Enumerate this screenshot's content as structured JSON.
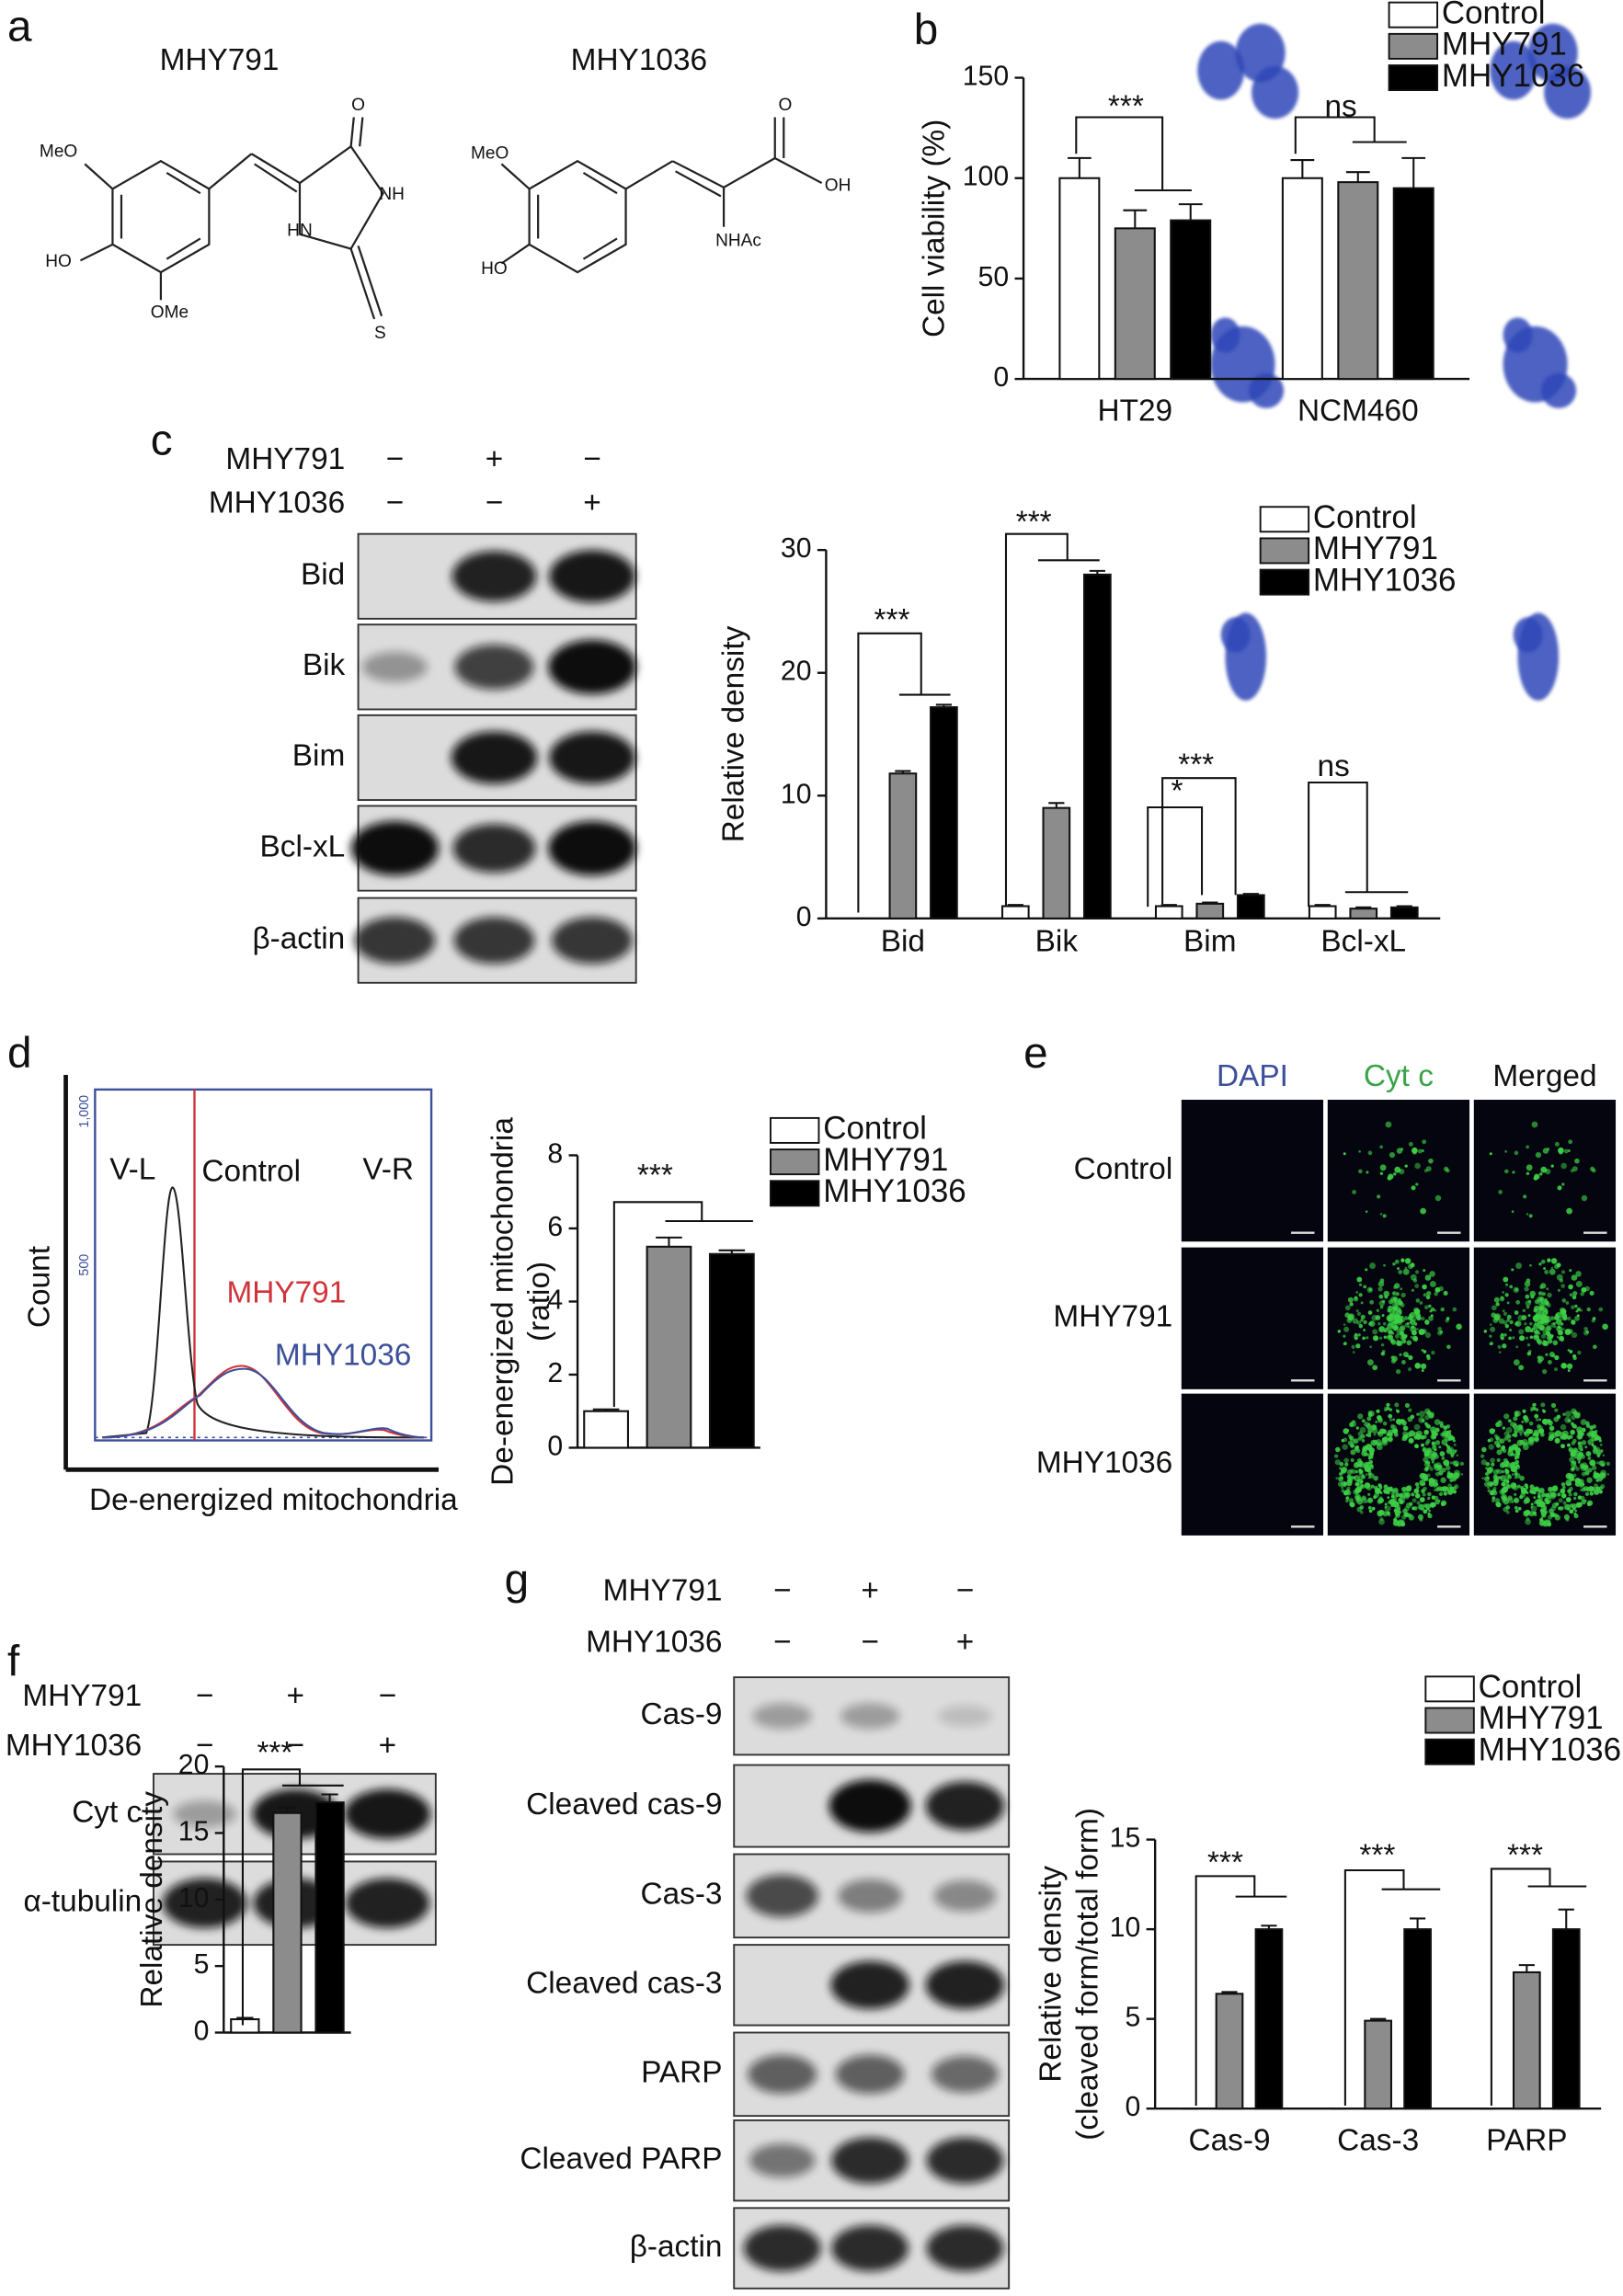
{
  "panels": {
    "a": {
      "letter": "a",
      "compounds": [
        {
          "name": "MHY791",
          "atoms": [
            "MeO",
            "HO",
            "OMe",
            "O",
            "NH",
            "HN",
            "S"
          ]
        },
        {
          "name": "MHY1036",
          "atoms": [
            "MeO",
            "HO",
            "O",
            "OH",
            "NHAc"
          ]
        }
      ]
    },
    "b": {
      "letter": "b"
    },
    "c": {
      "letter": "c",
      "treatments": [
        {
          "name": "MHY791",
          "signs": [
            "−",
            "+",
            "−"
          ]
        },
        {
          "name": "MHY1036",
          "signs": [
            "−",
            "−",
            "+"
          ]
        }
      ],
      "rows": [
        "Bid",
        "Bik",
        "Bim",
        "Bcl-xL",
        "β-actin"
      ]
    },
    "d": {
      "letter": "d",
      "regions": [
        "V-L",
        "V-R"
      ],
      "traces": [
        {
          "name": "Control",
          "color": "#222222"
        },
        {
          "name": "MHY791",
          "color": "#d0343a"
        },
        {
          "name": "MHY1036",
          "color": "#3c4f9a"
        }
      ],
      "ylabel": "Count",
      "xlabel": "De-energized mitochondria",
      "yticks": [
        "1,000",
        "500"
      ]
    },
    "e": {
      "letter": "e",
      "columns": [
        "DAPI",
        "Cyt c",
        "Merged"
      ],
      "column_colors": [
        "#3c4f9a",
        "#3aa34a",
        "#111111"
      ],
      "rows": [
        "Control",
        "MHY791",
        "MHY1036"
      ]
    },
    "f": {
      "letter": "f",
      "treatments": [
        {
          "name": "MHY791",
          "signs": [
            "−",
            "+",
            "−"
          ]
        },
        {
          "name": "MHY1036",
          "signs": [
            "−",
            "−",
            "+"
          ]
        }
      ],
      "rows": [
        "Cyt c",
        "α-tubulin"
      ]
    },
    "g": {
      "letter": "g",
      "treatments": [
        {
          "name": "MHY791",
          "signs": [
            "−",
            "+",
            "−"
          ]
        },
        {
          "name": "MHY1036",
          "signs": [
            "−",
            "−",
            "+"
          ]
        }
      ],
      "rows": [
        "Cas-9",
        "Cleaved cas-9",
        "Cas-3",
        "Cleaved cas-3",
        "PARP",
        "Cleaved PARP",
        "β-actin"
      ]
    }
  },
  "chart_data": [
    {
      "type": "bar",
      "ylabel": "Cell viability (%)",
      "categories": [
        "HT29",
        "NCM460"
      ],
      "series": [
        {
          "name": "Control",
          "color": "#ffffff",
          "values": [
            100,
            100
          ],
          "errors": [
            10,
            9
          ]
        },
        {
          "name": "MHY791",
          "color": "#8c8c8c",
          "values": [
            75,
            98
          ],
          "errors": [
            9,
            5
          ]
        },
        {
          "name": "MHY1036",
          "color": "#000000",
          "values": [
            79,
            95
          ],
          "errors": [
            8,
            15
          ]
        }
      ],
      "ylim": [
        0,
        150
      ],
      "yticks": [
        0,
        50,
        100,
        150
      ],
      "annotations": [
        "***",
        "ns"
      ]
    },
    {
      "type": "bar",
      "ylabel": "Relative density",
      "categories": [
        "Bid",
        "Bik",
        "Bim",
        "Bcl-xL"
      ],
      "series": [
        {
          "name": "Control",
          "color": "#ffffff",
          "values": [
            0,
            1,
            1,
            1
          ],
          "errors": [
            0,
            0.1,
            0.1,
            0.1
          ]
        },
        {
          "name": "MHY791",
          "color": "#8c8c8c",
          "values": [
            11.8,
            9,
            1.2,
            0.8
          ],
          "errors": [
            0.2,
            0.4,
            0.1,
            0.1
          ]
        },
        {
          "name": "MHY1036",
          "color": "#000000",
          "values": [
            17.2,
            28,
            1.9,
            0.9
          ],
          "errors": [
            0.2,
            0.3,
            0.1,
            0.1
          ]
        }
      ],
      "ylim": [
        0,
        30
      ],
      "yticks": [
        0,
        10,
        20,
        30
      ],
      "annotations": [
        "***",
        "***",
        "***",
        "*",
        "ns"
      ]
    },
    {
      "type": "bar",
      "ylabel": [
        "De-energized mitochondria",
        "(ratio)"
      ],
      "categories": [
        null
      ],
      "series": [
        {
          "name": "Control",
          "color": "#ffffff",
          "values": [
            1
          ],
          "errors": [
            0.05
          ]
        },
        {
          "name": "MHY791",
          "color": "#8c8c8c",
          "values": [
            5.5
          ],
          "errors": [
            0.25
          ]
        },
        {
          "name": "MHY1036",
          "color": "#000000",
          "values": [
            5.3
          ],
          "errors": [
            0.1
          ]
        }
      ],
      "ylim": [
        0,
        8
      ],
      "yticks": [
        0,
        2,
        4,
        6,
        8
      ],
      "annotations": [
        "***"
      ]
    },
    {
      "type": "bar",
      "ylabel": "Relative density",
      "categories": [
        null
      ],
      "series": [
        {
          "name": "Control",
          "color": "#ffffff",
          "values": [
            1
          ],
          "errors": [
            0.1
          ]
        },
        {
          "name": "MHY791",
          "color": "#8c8c8c",
          "values": [
            16.5
          ],
          "errors": [
            0.4
          ]
        },
        {
          "name": "MHY1036",
          "color": "#000000",
          "values": [
            17.3
          ],
          "errors": [
            0.6
          ]
        }
      ],
      "ylim": [
        0,
        20
      ],
      "yticks": [
        0,
        5,
        10,
        15,
        20
      ],
      "annotations": [
        "***"
      ]
    },
    {
      "type": "bar",
      "ylabel": [
        "Relative density",
        "(cleaved form/total form)"
      ],
      "categories": [
        "Cas-9",
        "Cas-3",
        "PARP"
      ],
      "series": [
        {
          "name": "Control",
          "color": "#ffffff",
          "values": [
            0,
            0,
            0
          ],
          "errors": [
            0,
            0,
            0
          ]
        },
        {
          "name": "MHY791",
          "color": "#8c8c8c",
          "values": [
            6.4,
            4.9,
            7.6
          ],
          "errors": [
            0.1,
            0.1,
            0.4
          ]
        },
        {
          "name": "MHY1036",
          "color": "#000000",
          "values": [
            10,
            10,
            10
          ],
          "errors": [
            0.2,
            0.6,
            1.1
          ]
        }
      ],
      "ylim": [
        0,
        15
      ],
      "yticks": [
        0,
        5,
        10,
        15
      ],
      "annotations": [
        "***",
        "***",
        "***"
      ]
    }
  ]
}
